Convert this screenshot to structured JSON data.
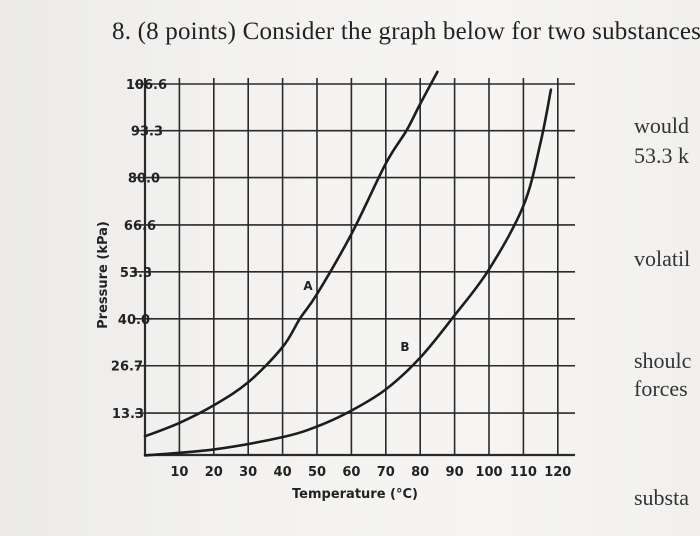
{
  "question": {
    "number": "8.",
    "text": "(8 points) Consider the graph below for two substances"
  },
  "side_text": [
    "would",
    "53.3 k",
    "volatil",
    "shoulc",
    "forces",
    "substa"
  ],
  "chart_data": {
    "type": "line",
    "xlabel": "Temperature (°C)",
    "ylabel": "Pressure (kPa)",
    "x_ticks": [
      10,
      20,
      30,
      40,
      50,
      60,
      70,
      80,
      90,
      100,
      110,
      120
    ],
    "y_ticks": [
      "13.3",
      "26.7",
      "40.0",
      "53.3",
      "66.6",
      "80.0",
      "93.3",
      "106.6"
    ],
    "xlim": [
      0,
      125
    ],
    "ylim": [
      0,
      106.6
    ],
    "grid": true,
    "series": [
      {
        "name": "A",
        "x": [
          0,
          10,
          20,
          30,
          40,
          45,
          50,
          60,
          70,
          76,
          80,
          85
        ],
        "y": [
          6.7,
          10.5,
          15.5,
          22,
          32,
          40,
          47,
          64,
          84,
          93.3,
          101,
          110
        ]
      },
      {
        "name": "B",
        "x": [
          0,
          20,
          40,
          50,
          60,
          70,
          80,
          90,
          100,
          110,
          115,
          118
        ],
        "y": [
          1.3,
          3,
          6.5,
          9.5,
          14,
          20,
          29,
          41,
          54,
          72,
          90,
          105
        ]
      }
    ]
  }
}
